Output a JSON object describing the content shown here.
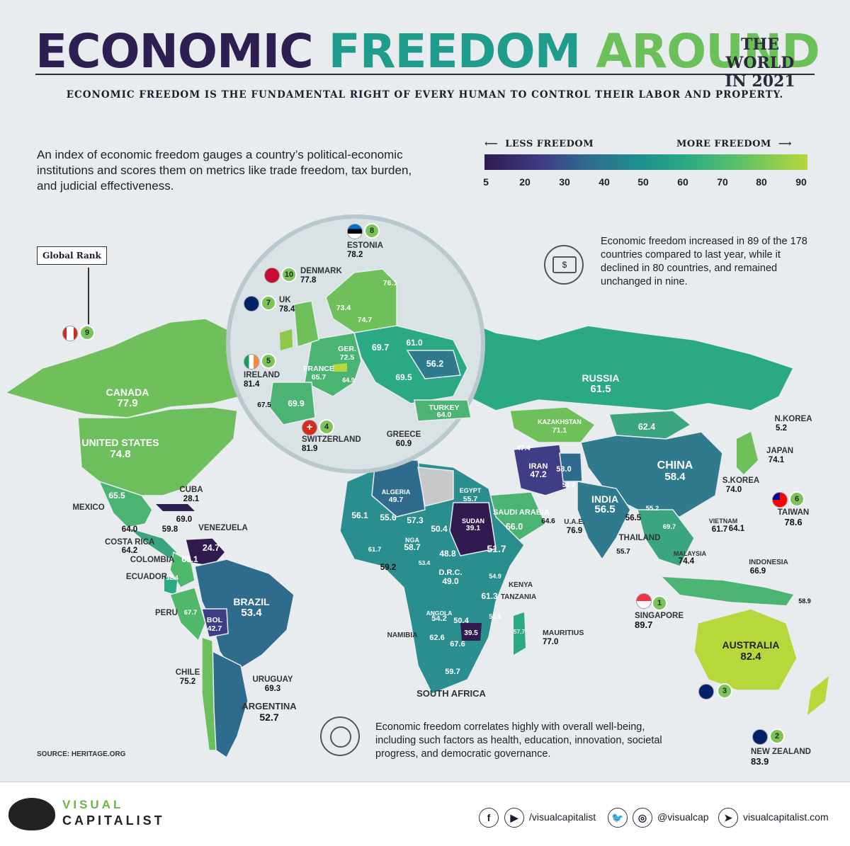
{
  "header": {
    "title_parts": [
      "ECONOMIC",
      "FREEDOM",
      "AROUND"
    ],
    "year_label_1": "THE WORLD",
    "year_label_2": "IN 2021",
    "tagline": "ECONOMIC FREEDOM IS THE FUNDAMENTAL RIGHT OF EVERY HUMAN TO CONTROL THEIR LABOR AND PROPERTY."
  },
  "intro": "An index of economic freedom gauges a country’s political-economic institutions and scores them on metrics like trade freedom, tax burden, and judicial effectiveness.",
  "legend": {
    "less_label": "LESS FREEDOM",
    "more_label": "MORE FREEDOM",
    "ticks": [
      "5",
      "20",
      "30",
      "40",
      "50",
      "60",
      "70",
      "80",
      "90"
    ],
    "colors": [
      "#301a4f",
      "#3f3d86",
      "#2f6b8c",
      "#1f8f8f",
      "#2aa984",
      "#5bbf6a",
      "#b6d83b"
    ]
  },
  "stat_top": "Economic freedom increased in 89 of the 178 countries compared to last year, while it declined in 80 countries, and remained unchanged in nine.",
  "stat_bottom": "Economic freedom correlates highly with overall well-being, including such factors as health, education, innovation, societal progress, and democratic governance.",
  "global_rank_label": "Global Rank",
  "source": "SOURCE: HERITAGE.ORG",
  "countries": {
    "canada": {
      "name": "CANADA",
      "value": "77.9",
      "rank": "9"
    },
    "usa": {
      "name": "UNITED STATES",
      "value": "74.8"
    },
    "mexico": {
      "name": "MEXICO",
      "value": "65.5"
    },
    "cuba": {
      "name": "CUBA",
      "value": "28.1"
    },
    "haiti_val": "69.0",
    "guatemala_val": "64.0",
    "honduras_val": "59.8",
    "costa_rica": {
      "name": "COSTA RICA",
      "value": "64.2"
    },
    "venezuela": {
      "name": "VENEZUELA",
      "value": "24.7"
    },
    "colombia": {
      "name": "COLOMBIA",
      "value": "68.1"
    },
    "ecuador": {
      "name": "ECUADOR",
      "value": "52.4"
    },
    "peru": {
      "name": "PERU",
      "value": "67.7"
    },
    "bolivia": {
      "name": "BOL",
      "value": "42.7"
    },
    "brazil": {
      "name": "BRAZIL",
      "value": "53.4"
    },
    "chile": {
      "name": "CHILE",
      "value": "75.2"
    },
    "uruguay": {
      "name": "URUGUAY",
      "value": "69.3"
    },
    "argentina": {
      "name": "ARGENTINA",
      "value": "52.7"
    },
    "estonia": {
      "name": "ESTONIA",
      "value": "78.2",
      "rank": "8"
    },
    "denmark": {
      "name": "DENMARK",
      "value": "77.8",
      "rank": "10"
    },
    "uk": {
      "name": "UK",
      "value": "78.4",
      "rank": "7"
    },
    "ireland": {
      "name": "IRELAND",
      "value": "81.4",
      "rank": "5"
    },
    "switzerland": {
      "name": "SWITZERLAND",
      "value": "81.9",
      "rank": "4"
    },
    "greece": {
      "name": "GREECE",
      "value": "60.9"
    },
    "germany": {
      "name": "GER.",
      "value": "72.5"
    },
    "france": {
      "name": "FRANCE",
      "value": "65.7"
    },
    "italy_val": "64.9",
    "spain_val": "69.9",
    "portugal_val": "67.5",
    "norway_val": "73.4",
    "sweden_val": "74.7",
    "finland_val": "76.1",
    "poland_val": "69.7",
    "belarus_val": "61.0",
    "ukraine_val": "56.2",
    "romania_val": "69.5",
    "turkey": {
      "name": "TURKEY",
      "value": "64.0"
    },
    "russia": {
      "name": "RUSSIA",
      "value": "61.5"
    },
    "kazakhstan": {
      "name": "KAZAKHSTAN",
      "value": "71.1"
    },
    "mongolia_val": "62.4",
    "china": {
      "name": "CHINA",
      "value": "58.4"
    },
    "n_korea": {
      "name": "N.KOREA",
      "value": "5.2"
    },
    "japan": {
      "name": "JAPAN",
      "value": "74.1"
    },
    "s_korea": {
      "name": "S.KOREA",
      "value": "74.0"
    },
    "taiwan": {
      "name": "TAIWAN",
      "value": "78.6",
      "rank": "6"
    },
    "iran": {
      "name": "IRAN",
      "value": "47.2"
    },
    "iraq_val": "47.4",
    "afghanistan_val": "53.0",
    "pakistan_val": "51.7",
    "india": {
      "name": "INDIA",
      "value": "56.5"
    },
    "bangladesh_val": "56.5",
    "myanmar_val": "55.2",
    "sri_lanka_val": "55.7",
    "thailand": {
      "name": "THAILAND",
      "value": ""
    },
    "vietnam": {
      "name": "VIETNAM",
      "value": "61.7"
    },
    "cambodia_val": "69.7",
    "philippines_val": "64.1",
    "malaysia": {
      "name": "MALAYSIA",
      "value": "74.4"
    },
    "indonesia": {
      "name": "INDONESIA",
      "value": "66.9"
    },
    "png_val": "58.9",
    "singapore": {
      "name": "SINGAPORE",
      "value": "89.7",
      "rank": "1"
    },
    "australia": {
      "name": "AUSTRALIA",
      "value": "82.4",
      "rank": "3"
    },
    "new_zealand": {
      "name": "NEW ZEALAND",
      "value": "83.9",
      "rank": "2"
    },
    "saudi": {
      "name": "SAUDI ARABIA",
      "value": "66.0"
    },
    "uae": {
      "name": "U.A.E.",
      "value": "76.9"
    },
    "oman_val": "64.6",
    "egypt": {
      "name": "EGYPT",
      "value": "55.7"
    },
    "algeria": {
      "name": "ALGERIA",
      "value": "49.7"
    },
    "sudan": {
      "name": "SUDAN",
      "value": "39.1"
    },
    "mauritania_val": "56.1",
    "mali_val": "55.6",
    "niger_val": "57.3",
    "chad_val": "50.4",
    "ethiopia_val": "51.7",
    "nigeria": {
      "name": "NGA",
      "value": "58.7"
    },
    "car_val": "48.8",
    "ghana_val": "61.7",
    "liberia_val": "59.2",
    "gabon_val": "53.4",
    "drc": {
      "name": "D.R.C.",
      "value": "49.0"
    },
    "kenya": {
      "name": "KENYA",
      "value": "54.9"
    },
    "tanzania": {
      "name": "TANZANIA",
      "value": "61.3"
    },
    "angola": {
      "name": "ANGOLA",
      "value": "54.2"
    },
    "zambia_val": "50.4",
    "mozambique_val": "51.6",
    "zimbabwe_val": "39.5",
    "namibia": {
      "name": "NAMIBIA",
      "value": "62.6"
    },
    "botswana_val": "67.6",
    "south_africa": {
      "name": "SOUTH AFRICA",
      "value": "59.7"
    },
    "madagascar_val": "57.7",
    "mauritius": {
      "name": "MAURITIUS",
      "value": "77.0"
    }
  },
  "footer": {
    "brand_1": "VISUAL",
    "brand_2": "CAPITALIST",
    "handle_1": "/visualcapitalist",
    "handle_2": "@visualcap",
    "url": "visualcapitalist.com"
  }
}
